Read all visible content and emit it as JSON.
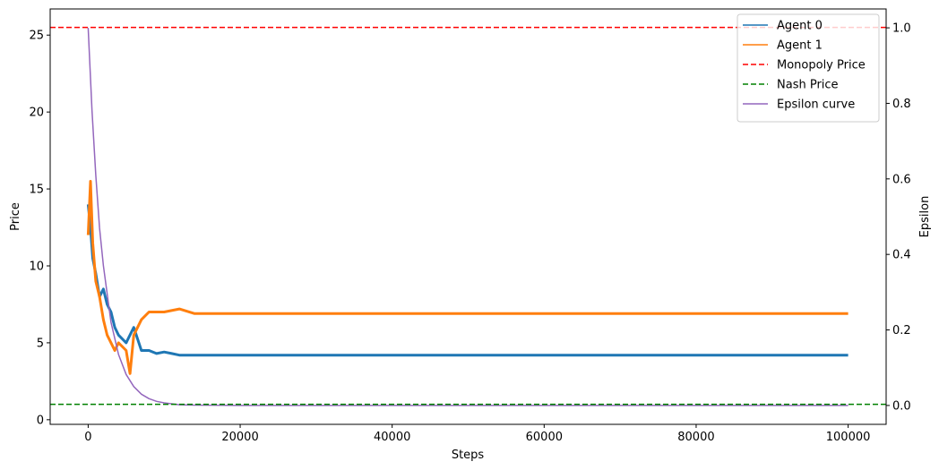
{
  "chart_data": {
    "type": "line",
    "xlabel": "Steps",
    "ylabel": "Price",
    "y2label": "Epsilon",
    "xlim": [
      -5000,
      105000
    ],
    "ylim": [
      -0.3,
      26.7
    ],
    "y2lim": [
      -0.05,
      1.05
    ],
    "x_ticks": [
      0,
      20000,
      40000,
      60000,
      80000,
      100000
    ],
    "y_ticks": [
      0,
      5,
      10,
      15,
      20,
      25
    ],
    "y2_ticks": [
      0.0,
      0.2,
      0.4,
      0.6,
      0.8,
      1.0
    ],
    "x_tick_labels": [
      "0",
      "20000",
      "40000",
      "60000",
      "80000",
      "100000"
    ],
    "y_tick_labels": [
      "0",
      "5",
      "10",
      "15",
      "20",
      "25"
    ],
    "y2_tick_labels": [
      "0.0",
      "0.2",
      "0.4",
      "0.6",
      "0.8",
      "1.0"
    ],
    "grid": false,
    "legend_position": "top-right",
    "series": [
      {
        "name": "Agent 0",
        "color": "#1f77b4",
        "axis": "left",
        "x": [
          0,
          300,
          600,
          1000,
          1500,
          2000,
          2500,
          3000,
          3500,
          4000,
          5000,
          6000,
          7000,
          8000,
          9000,
          10000,
          11000,
          12000,
          14000,
          16000,
          20000,
          40000,
          60000,
          80000,
          100000
        ],
        "y": [
          14.0,
          12.5,
          10.5,
          9.5,
          8.0,
          8.5,
          7.5,
          7.0,
          6.0,
          5.5,
          5.0,
          6.0,
          4.5,
          4.5,
          4.3,
          4.4,
          4.3,
          4.2,
          4.2,
          4.2,
          4.2,
          4.2,
          4.2,
          4.2,
          4.2
        ]
      },
      {
        "name": "Agent 1",
        "color": "#ff7f0e",
        "axis": "left",
        "x": [
          0,
          300,
          600,
          1000,
          1500,
          2000,
          2500,
          3000,
          3500,
          4000,
          5000,
          5500,
          6000,
          7000,
          8000,
          9000,
          10000,
          12000,
          14000,
          18000,
          20000,
          40000,
          60000,
          80000,
          100000
        ],
        "y": [
          12.0,
          15.5,
          11.5,
          9.0,
          8.0,
          6.5,
          5.5,
          5.0,
          4.5,
          5.0,
          4.5,
          3.0,
          5.5,
          6.5,
          7.0,
          7.0,
          7.0,
          7.2,
          6.9,
          6.9,
          6.9,
          6.9,
          6.9,
          6.9,
          6.9
        ]
      },
      {
        "name": "Monopoly Price",
        "color": "#ff0000",
        "axis": "left",
        "dashed": true,
        "value": 25.5
      },
      {
        "name": "Nash Price",
        "color": "#008000",
        "axis": "left",
        "dashed": true,
        "value": 1.0
      },
      {
        "name": "Epsilon curve",
        "color": "#9467bd",
        "axis": "right",
        "decay_note_free": true,
        "x": [
          0,
          500,
          1000,
          1500,
          2000,
          3000,
          4000,
          5000,
          6000,
          7000,
          8000,
          9000,
          10000,
          12000,
          14000,
          20000,
          40000,
          60000,
          80000,
          100000
        ],
        "y": [
          1.0,
          0.78,
          0.61,
          0.47,
          0.37,
          0.22,
          0.135,
          0.082,
          0.05,
          0.03,
          0.018,
          0.011,
          0.007,
          0.002,
          0.001,
          0.0,
          0.0,
          0.0,
          0.0,
          0.0
        ]
      }
    ]
  }
}
